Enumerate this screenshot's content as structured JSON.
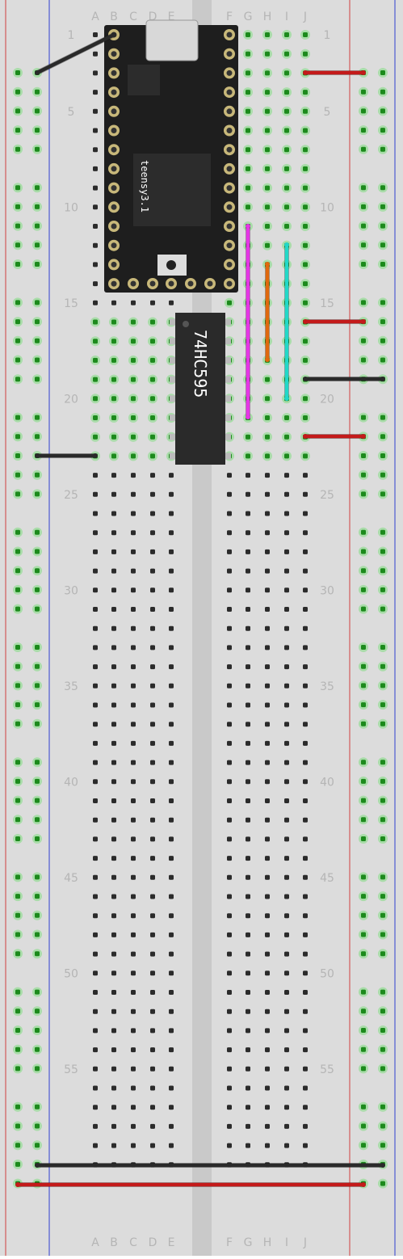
{
  "breadboard": {
    "column_letters": [
      "A",
      "B",
      "C",
      "D",
      "E",
      "F",
      "G",
      "H",
      "I",
      "J"
    ],
    "row_numbers": [
      "1",
      "5",
      "10",
      "15",
      "20",
      "25",
      "30",
      "35",
      "40",
      "45",
      "50",
      "55"
    ],
    "row_count": 60,
    "colors": {
      "board": "#dcdcdc",
      "center_channel": "#c9c9c9",
      "hole": "#2b2b2b",
      "hole_connected": "#1c8a1c",
      "hole_glow": "#7fdc7f",
      "rail_red": "#d04040",
      "rail_blue": "#2f3fd0"
    }
  },
  "teensy": {
    "label": "teensy3.1",
    "color": "#1e1e1e",
    "pad_color": "#c8b87a"
  },
  "chip": {
    "label": "74HC595",
    "color": "#2a2a2a"
  },
  "wires": [
    {
      "id": "gnd-top-left",
      "color": "#2a2a2a",
      "name": "black-wire"
    },
    {
      "id": "vcc-top-right",
      "color": "#c41a1a",
      "name": "red-wire"
    },
    {
      "id": "magenta",
      "color": "#e535e5",
      "name": "magenta-wire"
    },
    {
      "id": "orange",
      "color": "#e0680e",
      "name": "orange-wire"
    },
    {
      "id": "cyan",
      "color": "#22d8c8",
      "name": "cyan-wire"
    },
    {
      "id": "vcc-row16",
      "color": "#c41a1a",
      "name": "red-wire"
    },
    {
      "id": "gnd-row19",
      "color": "#2a2a2a",
      "name": "black-wire"
    },
    {
      "id": "vcc-row21",
      "color": "#c41a1a",
      "name": "red-wire"
    },
    {
      "id": "gnd-row22",
      "color": "#2a2a2a",
      "name": "black-wire"
    },
    {
      "id": "gnd-bottom",
      "color": "#2a2a2a",
      "name": "black-wire"
    },
    {
      "id": "vcc-bottom",
      "color": "#c41a1a",
      "name": "red-wire"
    }
  ]
}
